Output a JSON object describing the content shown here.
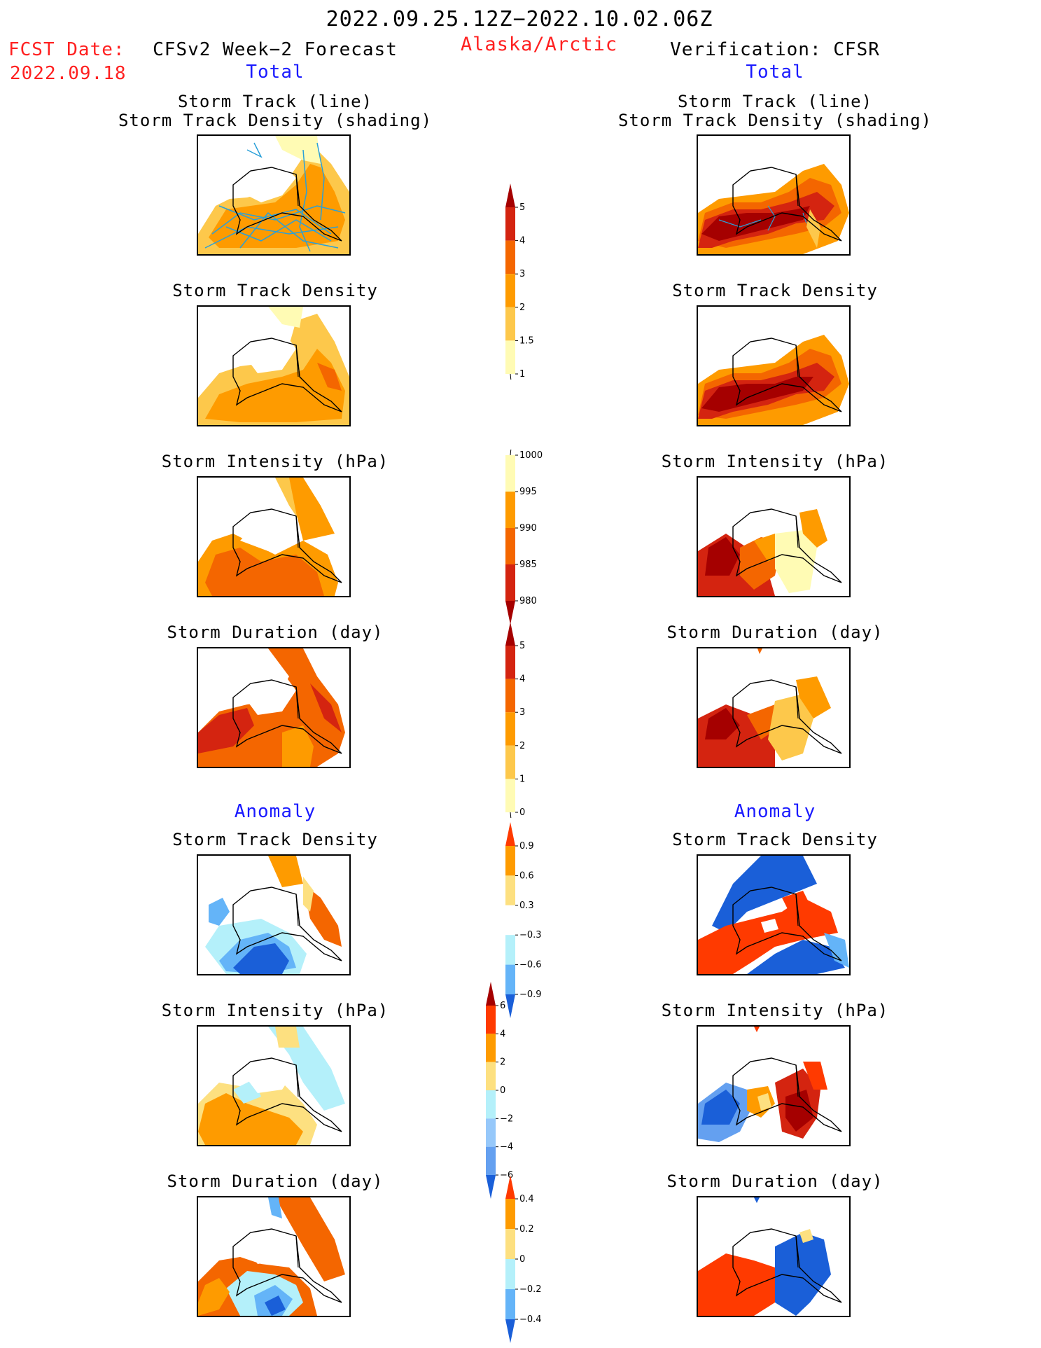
{
  "header": {
    "period": "2022.09.25.12Z−2022.10.02.06Z",
    "region": "Alaska/Arctic",
    "fcst_label": "FCST Date:",
    "fcst_date": "2022.09.18",
    "left_title": "CFSv2 Week−2 Forecast",
    "right_title": "Verification: CFSR",
    "total_label": "Total",
    "anomaly_label": "Anomaly"
  },
  "panels": {
    "track_line_1": "Storm Track (line)",
    "track_line_2": "Storm Track Density (shading)",
    "density": "Storm Track Density",
    "intensity": "Storm Intensity (hPa)",
    "duration": "Storm Duration (day)"
  },
  "colorbars": {
    "density_total": {
      "labels": [
        "5",
        "4",
        "3",
        "2",
        "1.5",
        "1"
      ],
      "colors": [
        "#a50000",
        "#d42410",
        "#f46600",
        "#fe9b00",
        "#fdc84b",
        "#fffbb4"
      ]
    },
    "intensity_total": {
      "labels": [
        "1000",
        "995",
        "990",
        "985",
        "980"
      ],
      "colors": [
        "#fffbb4",
        "#fe9b00",
        "#f46600",
        "#d42410",
        "#a50000"
      ]
    },
    "duration_total": {
      "labels": [
        "5",
        "4",
        "3",
        "2",
        "1",
        "0"
      ],
      "colors": [
        "#a50000",
        "#d42410",
        "#f46600",
        "#fe9b00",
        "#fdc84b",
        "#fffbb4"
      ]
    },
    "density_anom": {
      "labels": [
        "0.9",
        "0.6",
        "0.3",
        "−0.3",
        "−0.6",
        "−0.9"
      ],
      "colors": [
        "#ff3a00",
        "#fe9b00",
        "#fde080",
        "#ffffff",
        "#b4f0fa",
        "#64b4f8",
        "#1a5fd8"
      ]
    },
    "intensity_anom": {
      "labels": [
        "6",
        "4",
        "2",
        "0",
        "−2",
        "−4",
        "−6"
      ],
      "colors": [
        "#a50000",
        "#ff3a00",
        "#fe9b00",
        "#fde080",
        "#b4f0fa",
        "#96c8fa",
        "#64a0f0",
        "#1a5fd8"
      ]
    },
    "duration_anom": {
      "labels": [
        "0.4",
        "0.2",
        "0",
        "−0.2",
        "−0.4"
      ],
      "colors": [
        "#ff3a00",
        "#fe9b00",
        "#fde080",
        "#b4f0fa",
        "#64b4f8",
        "#1a5fd8"
      ]
    }
  }
}
